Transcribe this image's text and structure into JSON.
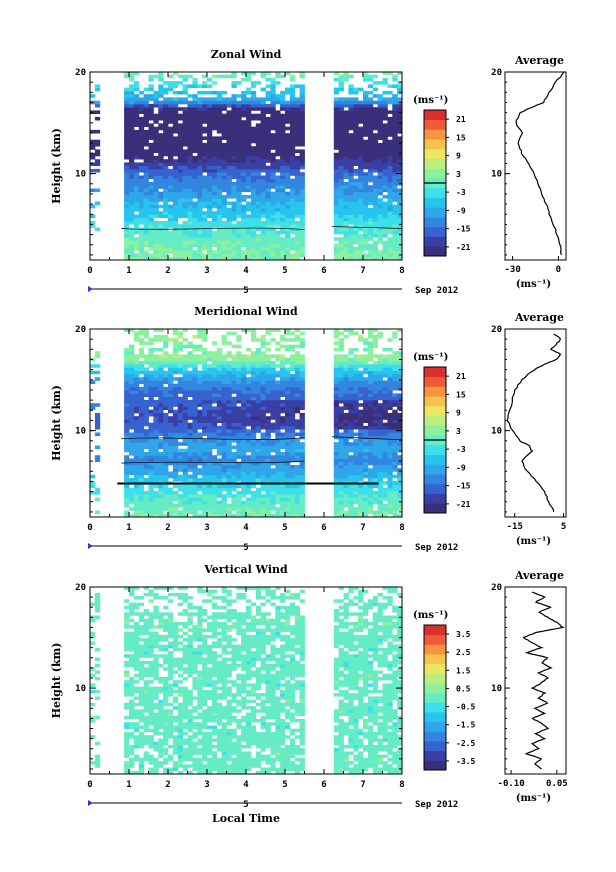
{
  "colors": {
    "scale": [
      "#3a2f7a",
      "#3b3fa5",
      "#3663cf",
      "#3386e0",
      "#2fa6ea",
      "#27c4ee",
      "#3de0e6",
      "#66ecc4",
      "#8cf09f",
      "#bdee7d",
      "#e9e860",
      "#f8c24e",
      "#f79442",
      "#ef5a3a",
      "#d9302e"
    ]
  },
  "chart_data": [
    {
      "type": "heatmap",
      "title": "Zonal Wind",
      "ylabel": "Height (km)",
      "xlabel": "",
      "x_ticks": [
        "0",
        "1",
        "2",
        "3",
        "4",
        "5",
        "6",
        "7",
        "8"
      ],
      "y_ticks": [
        "20",
        "10"
      ],
      "xlim": [
        0,
        8
      ],
      "ylim": [
        1.5,
        20
      ],
      "date_day": "5",
      "date_label": "Sep 2012",
      "data_gaps": [
        [
          0.2,
          0.8
        ],
        [
          5.5,
          6.2
        ]
      ],
      "profile": [
        [
          20,
          3
        ],
        [
          19,
          -2
        ],
        [
          18,
          -6
        ],
        [
          17,
          -10
        ],
        [
          16.5,
          -18
        ],
        [
          16,
          -25
        ],
        [
          15,
          -28
        ],
        [
          14,
          -24
        ],
        [
          13,
          -26
        ],
        [
          12,
          -24
        ],
        [
          11,
          -20
        ],
        [
          10,
          -16
        ],
        [
          9,
          -13
        ],
        [
          8,
          -11
        ],
        [
          7,
          -8
        ],
        [
          6,
          -6
        ],
        [
          5,
          -3
        ],
        [
          4,
          -1
        ],
        [
          3,
          1
        ],
        [
          2,
          2
        ]
      ],
      "colorbar": {
        "unit": "(ms⁻¹)",
        "ticks": [
          "21",
          "15",
          "9",
          "3",
          "-3",
          "-9",
          "-15",
          "-21"
        ],
        "range": [
          -24,
          24
        ],
        "zero_line": 0
      },
      "average": {
        "title": "Average",
        "x_ticks": [
          "-30",
          "0"
        ],
        "xlim": [
          -35,
          5
        ],
        "y_ticks": [
          "20",
          "10"
        ],
        "unit": "(ms⁻¹)",
        "profile": [
          [
            20,
            4
          ],
          [
            19,
            -2
          ],
          [
            18,
            -6
          ],
          [
            17,
            -10
          ],
          [
            16.5,
            -18
          ],
          [
            16,
            -25
          ],
          [
            15,
            -28
          ],
          [
            14,
            -24
          ],
          [
            13,
            -26
          ],
          [
            12,
            -24
          ],
          [
            11,
            -20
          ],
          [
            10,
            -16
          ],
          [
            9,
            -13
          ],
          [
            8,
            -11
          ],
          [
            7,
            -8
          ],
          [
            6,
            -6
          ],
          [
            5,
            -3
          ],
          [
            4,
            -1
          ],
          [
            3,
            1
          ],
          [
            2,
            2
          ]
        ]
      }
    },
    {
      "type": "heatmap",
      "title": "Meridional Wind",
      "ylabel": "Height (km)",
      "xlabel": "",
      "x_ticks": [
        "0",
        "1",
        "2",
        "3",
        "4",
        "5",
        "6",
        "7",
        "8"
      ],
      "y_ticks": [
        "20",
        "10"
      ],
      "xlim": [
        0,
        8
      ],
      "ylim": [
        1.5,
        20
      ],
      "date_day": "5",
      "date_label": "Sep 2012",
      "data_gaps": [
        [
          0.2,
          0.8
        ],
        [
          5.5,
          6.2
        ]
      ],
      "profile": [
        [
          20,
          2
        ],
        [
          19,
          4
        ],
        [
          18,
          1
        ],
        [
          17,
          4
        ],
        [
          16,
          -4
        ],
        [
          15,
          -10
        ],
        [
          14,
          -14
        ],
        [
          13,
          -16
        ],
        [
          12,
          -17
        ],
        [
          11,
          -18
        ],
        [
          10,
          -16
        ],
        [
          9,
          -12
        ],
        [
          8,
          -9
        ],
        [
          7,
          -13
        ],
        [
          6,
          -10
        ],
        [
          5,
          -6
        ],
        [
          4,
          -3
        ],
        [
          3,
          -1
        ],
        [
          2,
          1
        ]
      ],
      "colorbar": {
        "unit": "(ms⁻¹)",
        "ticks": [
          "21",
          "15",
          "9",
          "3",
          "-3",
          "-9",
          "-15",
          "-21"
        ],
        "range": [
          -24,
          24
        ],
        "zero_line": 0
      },
      "average": {
        "title": "Average",
        "x_ticks": [
          "-15",
          "5"
        ],
        "xlim": [
          -19,
          6
        ],
        "y_ticks": [
          "20",
          "10"
        ],
        "unit": "(ms⁻¹)",
        "profile": [
          [
            19.5,
            1
          ],
          [
            19,
            4
          ],
          [
            18.5,
            2
          ],
          [
            18,
            0
          ],
          [
            17.5,
            4
          ],
          [
            17,
            2
          ],
          [
            16.5,
            -3
          ],
          [
            16,
            -7
          ],
          [
            15,
            -12
          ],
          [
            14,
            -15
          ],
          [
            13,
            -16
          ],
          [
            12,
            -17
          ],
          [
            11,
            -18
          ],
          [
            10,
            -16
          ],
          [
            9,
            -13
          ],
          [
            8.5,
            -9
          ],
          [
            8,
            -8
          ],
          [
            7,
            -12
          ],
          [
            6,
            -10
          ],
          [
            5,
            -6
          ],
          [
            4,
            -3
          ],
          [
            3,
            -1
          ],
          [
            2,
            1
          ]
        ]
      }
    },
    {
      "type": "heatmap",
      "title": "Vertical Wind",
      "ylabel": "Height (km)",
      "xlabel": "Local Time",
      "x_ticks": [
        "0",
        "1",
        "2",
        "3",
        "4",
        "5",
        "6",
        "7",
        "8"
      ],
      "y_ticks": [
        "20",
        "10"
      ],
      "xlim": [
        0,
        8
      ],
      "ylim": [
        1.5,
        20
      ],
      "date_day": "5",
      "date_label": "Sep 2012",
      "data_gaps": [
        [
          0.2,
          0.8
        ],
        [
          5.5,
          6.2
        ]
      ],
      "profile": [
        [
          20,
          0
        ],
        [
          19,
          0.05
        ],
        [
          18,
          -0.02
        ],
        [
          17,
          0.03
        ],
        [
          16,
          0.06
        ],
        [
          15,
          -0.05
        ],
        [
          14,
          -0.03
        ],
        [
          13,
          -0.04
        ],
        [
          12,
          -0.01
        ],
        [
          11,
          0.02
        ],
        [
          10,
          -0.02
        ],
        [
          9,
          0.01
        ],
        [
          8,
          -0.03
        ],
        [
          7,
          0.02
        ],
        [
          6,
          -0.02
        ],
        [
          5,
          0.0
        ],
        [
          4,
          -0.03
        ],
        [
          3,
          0.01
        ],
        [
          2,
          0.0
        ]
      ],
      "colorbar": {
        "unit": "(ms⁻¹)",
        "ticks": [
          "3.5",
          "2.5",
          "1.5",
          "0.5",
          "-0.5",
          "-1.5",
          "-2.5",
          "-3.5"
        ],
        "range": [
          -4,
          4
        ],
        "zero_line": null
      },
      "average": {
        "title": "Average",
        "x_ticks": [
          "-0.10",
          "0.05"
        ],
        "xlim": [
          -0.12,
          0.08
        ],
        "y_ticks": [
          "20",
          "10"
        ],
        "unit": "(ms⁻¹)",
        "profile": [
          [
            19.5,
            -0.03
          ],
          [
            19,
            0.01
          ],
          [
            18.5,
            -0.02
          ],
          [
            18,
            0.03
          ],
          [
            17.5,
            -0.01
          ],
          [
            17,
            0.02
          ],
          [
            16.5,
            0.05
          ],
          [
            16,
            0.07
          ],
          [
            15.5,
            -0.02
          ],
          [
            15,
            -0.06
          ],
          [
            14.5,
            -0.03
          ],
          [
            14,
            0.0
          ],
          [
            13.5,
            -0.05
          ],
          [
            13,
            0.02
          ],
          [
            12.5,
            0.0
          ],
          [
            12,
            0.03
          ],
          [
            11.5,
            -0.01
          ],
          [
            11,
            0.02
          ],
          [
            10.5,
            0.0
          ],
          [
            10,
            -0.03
          ],
          [
            9.5,
            0.01
          ],
          [
            9,
            -0.01
          ],
          [
            8.5,
            0.02
          ],
          [
            8,
            -0.02
          ],
          [
            7.5,
            0.01
          ],
          [
            7,
            -0.03
          ],
          [
            6.5,
            0.0
          ],
          [
            6,
            0.02
          ],
          [
            5.5,
            -0.02
          ],
          [
            5,
            0.01
          ],
          [
            4.5,
            -0.03
          ],
          [
            4,
            -0.01
          ],
          [
            3.5,
            -0.05
          ],
          [
            3,
            0.0
          ],
          [
            2.5,
            -0.02
          ],
          [
            2,
            0.0
          ]
        ]
      }
    }
  ]
}
